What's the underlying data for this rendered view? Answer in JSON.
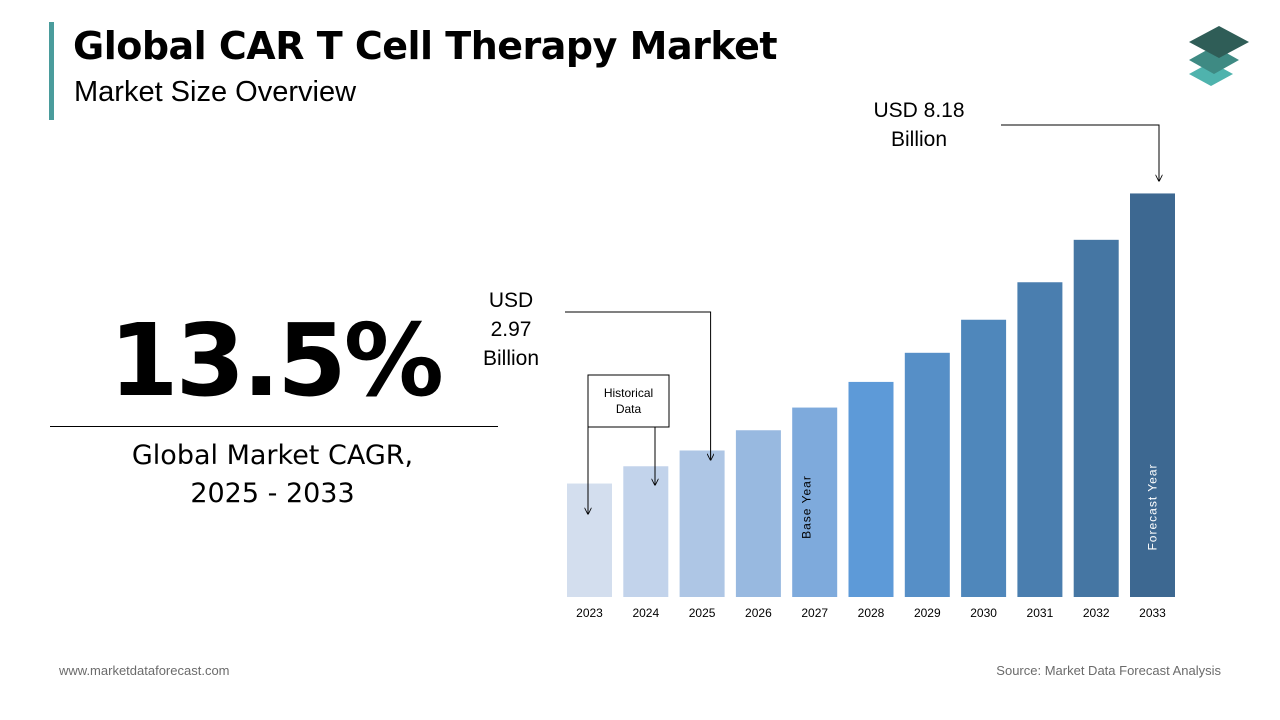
{
  "header": {
    "title": "Global CAR T Cell Therapy Market",
    "subtitle": "Market Size Overview"
  },
  "cagr": {
    "value": "13.5%",
    "label_line1": "Global Market CAGR,",
    "label_line2": "2025 - 2033"
  },
  "footer": {
    "website": "www.marketdataforecast.com",
    "source": "Source: Market Data Forecast Analysis"
  },
  "colors": {
    "accent": "#4a9c9c",
    "logo_top": "#2f5d57",
    "logo_mid": "#3e8a83",
    "logo_bottom": "#4fb3ad"
  },
  "chart_data": {
    "type": "bar",
    "categories": [
      "2023",
      "2024",
      "2025",
      "2026",
      "2027",
      "2028",
      "2029",
      "2030",
      "2031",
      "2032",
      "2033"
    ],
    "values": [
      2.3,
      2.65,
      2.97,
      3.38,
      3.84,
      4.36,
      4.95,
      5.62,
      6.38,
      7.24,
      8.18
    ],
    "colors": [
      "#d3deee",
      "#c2d3eb",
      "#aec6e5",
      "#98b9e0",
      "#7eaadc",
      "#5d9ad8",
      "#568fc7",
      "#4f87bb",
      "#4a7eaf",
      "#4576a3",
      "#3d6891"
    ],
    "ylim": [
      0,
      9
    ],
    "grid": false,
    "annotations": {
      "start": {
        "lines": [
          "USD",
          "2.97",
          "Billion"
        ],
        "year": "2025"
      },
      "end": {
        "lines": [
          "USD 8.18",
          "Billion"
        ],
        "year": "2033"
      },
      "historical_box": [
        "Historical",
        "Data"
      ],
      "base_year": {
        "label": "Base Year",
        "year": "2027"
      },
      "forecast_year": {
        "label": "Forecast Year",
        "year": "2033"
      }
    }
  }
}
